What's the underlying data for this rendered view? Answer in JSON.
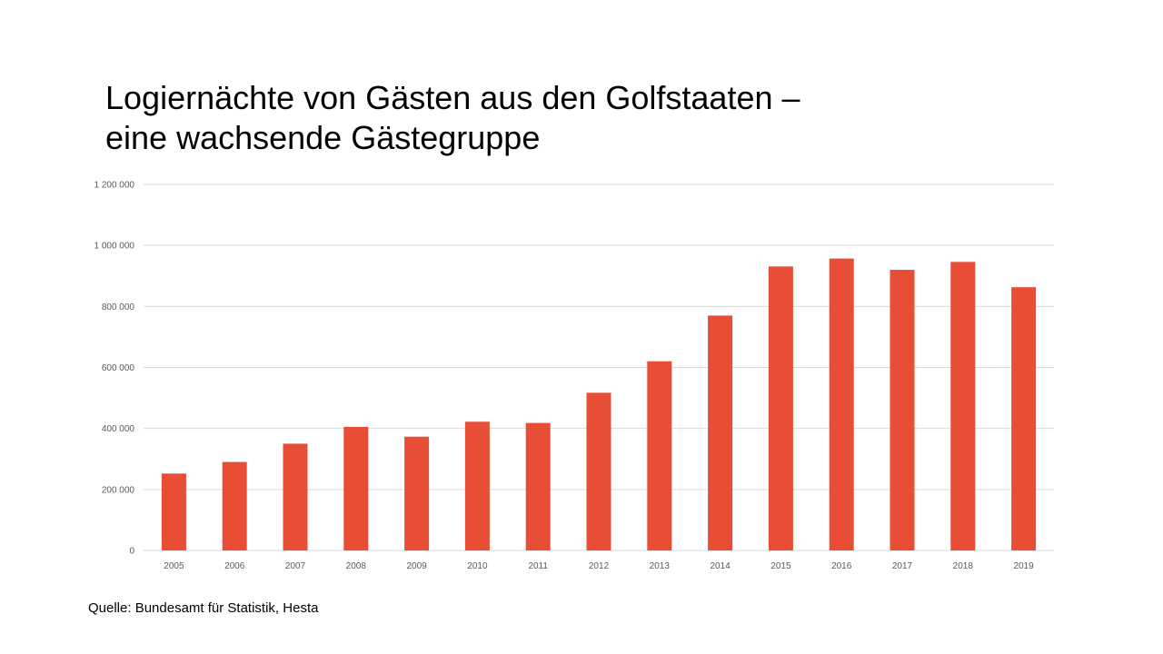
{
  "title_lines": [
    "Logiernächte von Gästen aus den Golfstaaten –",
    "eine wachsende Gästegruppe"
  ],
  "source": "Quelle: Bundesamt für Statistik, Hesta",
  "colors": {
    "bar": "#E84E36",
    "grid": "#D9D9D9",
    "tick": "#595959"
  },
  "chart_data": {
    "type": "bar",
    "categories": [
      "2005",
      "2006",
      "2007",
      "2008",
      "2009",
      "2010",
      "2011",
      "2012",
      "2013",
      "2014",
      "2015",
      "2016",
      "2017",
      "2018",
      "2019"
    ],
    "values": [
      252000,
      290000,
      350000,
      405000,
      373000,
      422000,
      418000,
      517000,
      620000,
      770000,
      931000,
      957000,
      920000,
      946000,
      863000
    ],
    "ylim": [
      0,
      1200000
    ],
    "y_ticks": [
      0,
      200000,
      400000,
      600000,
      800000,
      1000000,
      1200000
    ],
    "y_tick_labels": [
      "0",
      "200 000",
      "400 000",
      "600 000",
      "800 000",
      "1 000 000",
      "1 200 000"
    ],
    "grid": true,
    "legend": "none"
  }
}
